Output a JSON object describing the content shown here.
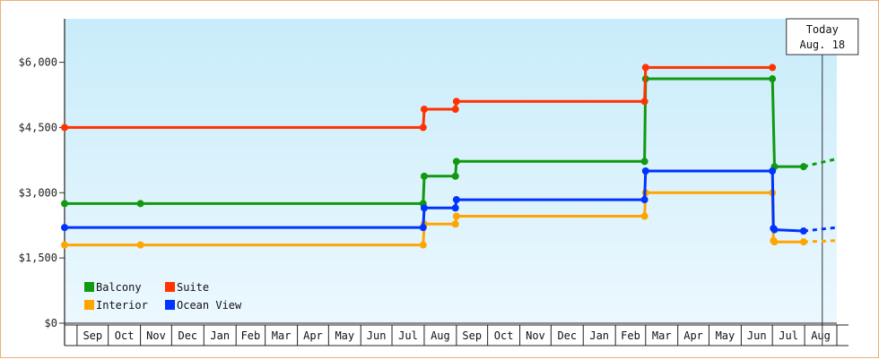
{
  "chart_data": {
    "type": "line",
    "title": "",
    "xlabel": "",
    "ylabel": "",
    "x_months": [
      "Sep",
      "Oct",
      "Nov",
      "Dec",
      "Jan",
      "Feb",
      "Mar",
      "Apr",
      "May",
      "Jun",
      "Jul",
      "Aug",
      "Sep",
      "Oct",
      "Nov",
      "Dec",
      "Jan",
      "Feb",
      "Mar",
      "Apr",
      "May",
      "Jun",
      "Jul",
      "Aug"
    ],
    "x_range": [
      "2022-08-20",
      "2024-09-01"
    ],
    "ylim": [
      0,
      7000
    ],
    "y_ticks": [
      {
        "value": 0,
        "label": "$0"
      },
      {
        "value": 1500,
        "label": "$1,500"
      },
      {
        "value": 3000,
        "label": "$3,000"
      },
      {
        "value": 4500,
        "label": "$4,500"
      },
      {
        "value": 6000,
        "label": "$6,000"
      }
    ],
    "grid": false,
    "legend_position": "bottom-left",
    "today": {
      "label": "Today",
      "date_label": "Aug. 18",
      "date": "2024-08-18"
    },
    "series": [
      {
        "name": "Balcony",
        "color": "#11990f",
        "points": [
          {
            "date": "2022-08-20",
            "value": 2750
          },
          {
            "date": "2022-11-01",
            "value": 2750
          },
          {
            "date": "2023-07-31",
            "value": 2750
          },
          {
            "date": "2023-08-01",
            "value": 3380
          },
          {
            "date": "2023-08-31",
            "value": 3380
          },
          {
            "date": "2023-09-01",
            "value": 3720
          },
          {
            "date": "2024-02-29",
            "value": 3720
          },
          {
            "date": "2024-03-01",
            "value": 5620
          },
          {
            "date": "2024-07-01",
            "value": 5620
          },
          {
            "date": "2024-07-03",
            "value": 3600
          },
          {
            "date": "2024-07-31",
            "value": 3600
          }
        ],
        "forecast_end": {
          "date": "2024-09-01",
          "value": 3780
        }
      },
      {
        "name": "Suite",
        "color": "#ff3300",
        "points": [
          {
            "date": "2022-08-20",
            "value": 4500
          },
          {
            "date": "2023-07-31",
            "value": 4500
          },
          {
            "date": "2023-08-01",
            "value": 4920
          },
          {
            "date": "2023-08-31",
            "value": 4920
          },
          {
            "date": "2023-09-01",
            "value": 5100
          },
          {
            "date": "2024-02-29",
            "value": 5100
          },
          {
            "date": "2024-03-01",
            "value": 5880
          },
          {
            "date": "2024-07-01",
            "value": 5880
          }
        ]
      },
      {
        "name": "Interior",
        "color": "#ffa500",
        "points": [
          {
            "date": "2022-08-20",
            "value": 1800
          },
          {
            "date": "2022-11-01",
            "value": 1800
          },
          {
            "date": "2023-07-31",
            "value": 1800
          },
          {
            "date": "2023-08-01",
            "value": 2280
          },
          {
            "date": "2023-08-31",
            "value": 2280
          },
          {
            "date": "2023-09-01",
            "value": 2460
          },
          {
            "date": "2024-02-29",
            "value": 2460
          },
          {
            "date": "2024-03-01",
            "value": 3000
          },
          {
            "date": "2024-07-01",
            "value": 3000
          },
          {
            "date": "2024-07-02",
            "value": 1900
          },
          {
            "date": "2024-07-03",
            "value": 1870
          },
          {
            "date": "2024-07-31",
            "value": 1870
          }
        ],
        "forecast_end": {
          "date": "2024-09-01",
          "value": 1900
        }
      },
      {
        "name": "Ocean View",
        "color": "#0033ff",
        "points": [
          {
            "date": "2022-08-20",
            "value": 2200
          },
          {
            "date": "2023-07-31",
            "value": 2200
          },
          {
            "date": "2023-08-01",
            "value": 2650
          },
          {
            "date": "2023-08-31",
            "value": 2650
          },
          {
            "date": "2023-09-01",
            "value": 2840
          },
          {
            "date": "2024-02-29",
            "value": 2840
          },
          {
            "date": "2024-03-01",
            "value": 3500
          },
          {
            "date": "2024-07-01",
            "value": 3500
          },
          {
            "date": "2024-07-02",
            "value": 2180
          },
          {
            "date": "2024-07-03",
            "value": 2150
          },
          {
            "date": "2024-07-31",
            "value": 2120
          }
        ],
        "forecast_end": {
          "date": "2024-09-01",
          "value": 2200
        }
      }
    ],
    "legend": [
      {
        "name": "Balcony",
        "color": "#11990f"
      },
      {
        "name": "Suite",
        "color": "#ff3300"
      },
      {
        "name": "Interior",
        "color": "#ffa500"
      },
      {
        "name": "Ocean View",
        "color": "#0033ff"
      }
    ]
  }
}
